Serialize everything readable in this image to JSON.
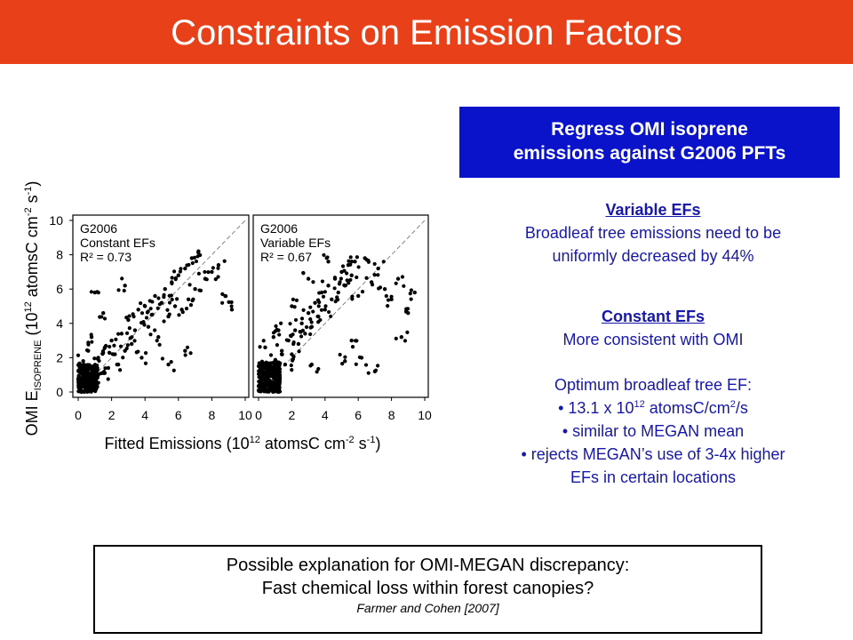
{
  "title": "Constraints on Emission Factors",
  "blue_box": {
    "line1": "Regress OMI isoprene",
    "line2": "emissions against G2006 PFTs"
  },
  "variable": {
    "heading": "Variable EFs",
    "line1": "Broadleaf tree emissions need to be",
    "line2": "uniformly decreased by 44%"
  },
  "constant": {
    "heading": "Constant EFs",
    "line1": "More consistent with OMI"
  },
  "optimum": {
    "line1": "Optimum broadleaf tree EF:",
    "b1_pre": "• 13.1 x 10",
    "b1_sup": "12",
    "b1_mid": " atomsC/cm",
    "b1_sup2": "2",
    "b1_post": "/s",
    "b2": "• similar to MEGAN mean",
    "b3": "• rejects MEGAN’s use of 3-4x higher",
    "b3b": "EFs in certain locations"
  },
  "note": {
    "line1": "Possible explanation for OMI-MEGAN discrepancy:",
    "line2": "Fast chemical loss within forest canopies?",
    "cite": "Farmer and Cohen [2007]"
  },
  "colors": {
    "title_bar": "#e8411a",
    "blue_box": "#0a13c9",
    "panel_text": "#1717a8"
  },
  "chart_data": [
    {
      "type": "scatter",
      "annotation": [
        "G2006",
        "Constant EFs",
        "R² = 0.73"
      ],
      "xlabel_parts": {
        "pre": "Fitted Emissions (10",
        "sup1": "12",
        "mid": " atomsC cm",
        "sup2": "-2",
        "mid2": " s",
        "sup3": "-1",
        "post": ")"
      },
      "ylabel_parts": {
        "pre": "OMI E",
        "sub": "ISOPRENE",
        "mid": " (10",
        "sup1": "12",
        "mid2": " atomsC cm",
        "sup2": "-2",
        "mid3": " s",
        "sup3": "-1",
        "post": ")"
      },
      "xlim": [
        0,
        10
      ],
      "ylim": [
        0,
        10
      ],
      "xticks": [
        "0",
        "2",
        "4",
        "6",
        "8",
        "10"
      ],
      "yticks": [
        "0",
        "2",
        "4",
        "6",
        "8",
        "10"
      ],
      "reference_line": "1:1 dashed",
      "points": [
        [
          0.2,
          0.3
        ],
        [
          0.4,
          0.6
        ],
        [
          0.5,
          1.0
        ],
        [
          0.7,
          0.4
        ],
        [
          0.9,
          1.5
        ],
        [
          1.0,
          0.8
        ],
        [
          1.2,
          2.0
        ],
        [
          1.4,
          1.1
        ],
        [
          1.6,
          2.6
        ],
        [
          1.8,
          1.4
        ],
        [
          2.0,
          3.0
        ],
        [
          2.2,
          2.2
        ],
        [
          2.4,
          1.6
        ],
        [
          2.6,
          3.4
        ],
        [
          2.8,
          2.4
        ],
        [
          3.0,
          4.2
        ],
        [
          3.2,
          2.8
        ],
        [
          3.4,
          3.6
        ],
        [
          3.6,
          4.8
        ],
        [
          3.8,
          2.0
        ],
        [
          4.0,
          5.0
        ],
        [
          4.2,
          3.8
        ],
        [
          4.4,
          4.5
        ],
        [
          4.6,
          5.6
        ],
        [
          4.8,
          3.2
        ],
        [
          5.0,
          5.2
        ],
        [
          5.2,
          6.0
        ],
        [
          5.4,
          4.4
        ],
        [
          5.6,
          6.4
        ],
        [
          5.8,
          5.0
        ],
        [
          6.0,
          6.8
        ],
        [
          6.2,
          4.8
        ],
        [
          6.4,
          7.2
        ],
        [
          6.6,
          5.4
        ],
        [
          6.8,
          7.8
        ],
        [
          7.0,
          6.0
        ],
        [
          7.2,
          8.2
        ],
        [
          7.6,
          6.6
        ],
        [
          8.0,
          7.0
        ],
        [
          8.4,
          7.4
        ],
        [
          8.8,
          5.6
        ],
        [
          1.0,
          5.8
        ],
        [
          1.5,
          4.6
        ],
        [
          2.8,
          6.2
        ],
        [
          9.2,
          4.8
        ],
        [
          5.4,
          1.6
        ],
        [
          6.4,
          2.4
        ],
        [
          0.3,
          1.8
        ],
        [
          0.6,
          2.4
        ],
        [
          0.8,
          3.2
        ]
      ],
      "cluster": {
        "x": [
          0,
          1.2
        ],
        "y": [
          0,
          1.6
        ]
      }
    },
    {
      "type": "scatter",
      "annotation": [
        "G2006",
        "Variable EFs",
        "R² = 0.67"
      ],
      "xlim": [
        0,
        10
      ],
      "ylim": [
        0,
        10
      ],
      "xticks": [
        "0",
        "2",
        "4",
        "6",
        "8",
        "10"
      ],
      "reference_line": "1:1 dashed",
      "points": [
        [
          0.2,
          0.4
        ],
        [
          0.4,
          0.8
        ],
        [
          0.6,
          1.4
        ],
        [
          0.8,
          0.6
        ],
        [
          1.0,
          1.8
        ],
        [
          1.2,
          1.0
        ],
        [
          1.4,
          2.4
        ],
        [
          1.6,
          1.6
        ],
        [
          1.8,
          3.0
        ],
        [
          2.0,
          2.2
        ],
        [
          2.2,
          3.6
        ],
        [
          2.4,
          2.8
        ],
        [
          2.6,
          4.0
        ],
        [
          2.8,
          3.4
        ],
        [
          3.0,
          4.6
        ],
        [
          3.2,
          3.8
        ],
        [
          3.4,
          5.2
        ],
        [
          3.6,
          4.4
        ],
        [
          3.8,
          5.8
        ],
        [
          4.0,
          4.8
        ],
        [
          4.2,
          6.2
        ],
        [
          4.4,
          5.4
        ],
        [
          4.6,
          6.6
        ],
        [
          4.8,
          5.8
        ],
        [
          5.0,
          7.0
        ],
        [
          5.2,
          6.2
        ],
        [
          5.4,
          7.4
        ],
        [
          5.6,
          6.8
        ],
        [
          5.8,
          7.6
        ],
        [
          6.0,
          5.6
        ],
        [
          6.4,
          7.8
        ],
        [
          6.8,
          6.4
        ],
        [
          7.2,
          7.2
        ],
        [
          7.6,
          6.0
        ],
        [
          8.0,
          5.4
        ],
        [
          8.4,
          6.6
        ],
        [
          9.0,
          4.6
        ],
        [
          5.6,
          3.0
        ],
        [
          6.2,
          2.0
        ],
        [
          7.0,
          1.2
        ],
        [
          3.2,
          1.6
        ],
        [
          1.2,
          3.6
        ],
        [
          2.0,
          5.0
        ],
        [
          3.0,
          6.6
        ],
        [
          4.2,
          7.6
        ],
        [
          8.6,
          3.2
        ],
        [
          9.4,
          5.8
        ],
        [
          0.4,
          2.6
        ],
        [
          0.9,
          3.2
        ],
        [
          5.2,
          1.8
        ]
      ],
      "cluster": {
        "x": [
          0,
          1.3
        ],
        "y": [
          0,
          1.8
        ]
      }
    }
  ]
}
